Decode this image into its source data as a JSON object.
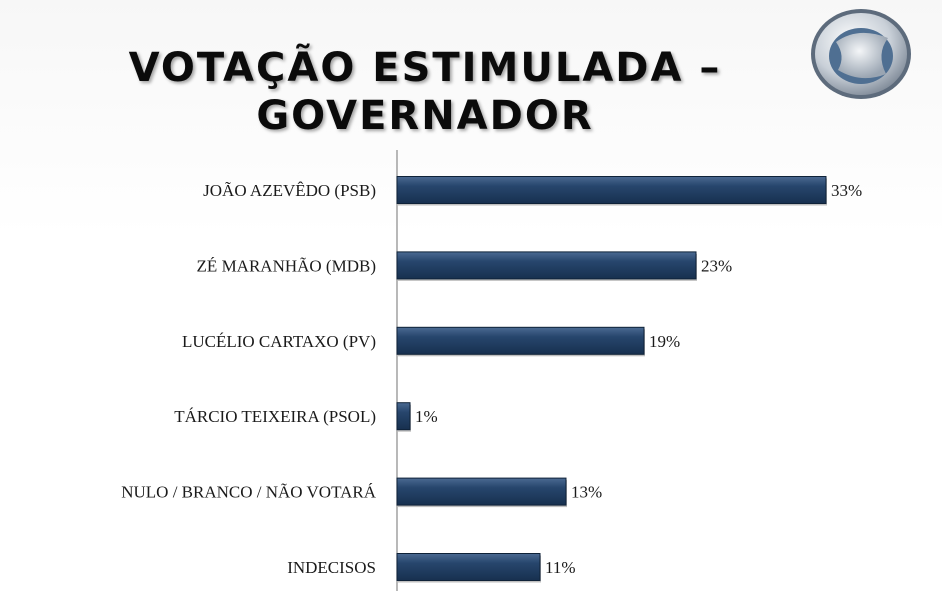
{
  "title_line1": "VOTAÇÃO ESTIMULADA –",
  "title_line2": "GOVERNADOR",
  "logo_icon": "record-tv-logo-icon",
  "colors": {
    "bar": "#1f3b5e",
    "bar_highlight": "#4b6a92",
    "axis": "#8a8a8a"
  },
  "chart_data": {
    "type": "bar",
    "orientation": "horizontal",
    "categories": [
      "JOÃO AZEVÊDO (PSB)",
      "ZÉ MARANHÃO (MDB)",
      "LUCÉLIO CARTAXO (PV)",
      "TÁRCIO TEIXEIRA (PSOL)",
      "NULO / BRANCO / NÃO VOTARÁ",
      "INDECISOS"
    ],
    "values": [
      33,
      23,
      19,
      1,
      13,
      11
    ],
    "value_labels": [
      "33%",
      "23%",
      "19%",
      "1%",
      "13%",
      "11%"
    ],
    "xlim": [
      0,
      40
    ],
    "grid": false,
    "legend": "none"
  }
}
